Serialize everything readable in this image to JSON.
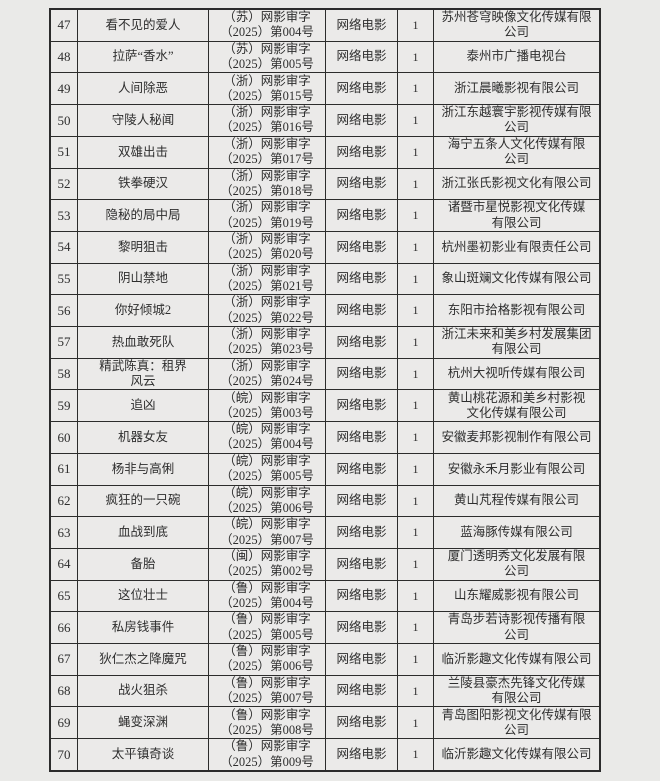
{
  "page": {
    "background": "#eaeae8",
    "table_border_color": "#2c2c2c",
    "cell_background": "#ebeae9"
  },
  "table": {
    "columns": [
      "index",
      "title",
      "license-number",
      "category",
      "episode-count",
      "production-company"
    ],
    "rows": [
      {
        "num": "47",
        "title": "看不见的爱人",
        "license": "（苏）网影审字\n（2025）第004号",
        "type": "网络电影",
        "count": "1",
        "company": "苏州苍穹映像文化传媒有限\n公司"
      },
      {
        "num": "48",
        "title": "拉萨“香水”",
        "license": "（苏）网影审字\n（2025）第005号",
        "type": "网络电影",
        "count": "1",
        "company": "泰州市广播电视台"
      },
      {
        "num": "49",
        "title": "人间除恶",
        "license": "（浙）网影审字\n（2025）第015号",
        "type": "网络电影",
        "count": "1",
        "company": "浙江晨曦影视有限公司"
      },
      {
        "num": "50",
        "title": "守陵人秘闻",
        "license": "（浙）网影审字\n（2025）第016号",
        "type": "网络电影",
        "count": "1",
        "company": "浙江东越寰宇影视传媒有限\n公司"
      },
      {
        "num": "51",
        "title": "双雄出击",
        "license": "（浙）网影审字\n（2025）第017号",
        "type": "网络电影",
        "count": "1",
        "company": "海宁五条人文化传媒有限\n公司"
      },
      {
        "num": "52",
        "title": "铁拳硬汉",
        "license": "（浙）网影审字\n（2025）第018号",
        "type": "网络电影",
        "count": "1",
        "company": "浙江张氏影视文化有限公司"
      },
      {
        "num": "53",
        "title": "隐秘的局中局",
        "license": "（浙）网影审字\n（2025）第019号",
        "type": "网络电影",
        "count": "1",
        "company": "诸暨市星悦影视文化传媒\n有限公司"
      },
      {
        "num": "54",
        "title": "黎明狙击",
        "license": "（浙）网影审字\n（2025）第020号",
        "type": "网络电影",
        "count": "1",
        "company": "杭州墨初影业有限责任公司"
      },
      {
        "num": "55",
        "title": "阴山禁地",
        "license": "（浙）网影审字\n（2025）第021号",
        "type": "网络电影",
        "count": "1",
        "company": "象山斑斓文化传媒有限公司"
      },
      {
        "num": "56",
        "title": "你好倾城2",
        "license": "（浙）网影审字\n（2025）第022号",
        "type": "网络电影",
        "count": "1",
        "company": "东阳市拾格影视有限公司"
      },
      {
        "num": "57",
        "title": "热血敢死队",
        "license": "（浙）网影审字\n（2025）第023号",
        "type": "网络电影",
        "count": "1",
        "company": "浙江未来和美乡村发展集团\n有限公司"
      },
      {
        "num": "58",
        "title": "精武陈真：租界\n风云",
        "license": "（浙）网影审字\n（2025）第024号",
        "type": "网络电影",
        "count": "1",
        "company": "杭州大视听传媒有限公司"
      },
      {
        "num": "59",
        "title": "追凶",
        "license": "（皖）网影审字\n（2025）第003号",
        "type": "网络电影",
        "count": "1",
        "company": "黄山桃花源和美乡村影视\n文化传媒有限公司"
      },
      {
        "num": "60",
        "title": "机器女友",
        "license": "（皖）网影审字\n（2025）第004号",
        "type": "网络电影",
        "count": "1",
        "company": "安徽麦邦影视制作有限公司"
      },
      {
        "num": "61",
        "title": "杨非与高俐",
        "license": "（皖）网影审字\n（2025）第005号",
        "type": "网络电影",
        "count": "1",
        "company": "安徽永禾月影业有限公司"
      },
      {
        "num": "62",
        "title": "疯狂的一只碗",
        "license": "（皖）网影审字\n（2025）第006号",
        "type": "网络电影",
        "count": "1",
        "company": "黄山芃程传媒有限公司"
      },
      {
        "num": "63",
        "title": "血战到底",
        "license": "（皖）网影审字\n（2025）第007号",
        "type": "网络电影",
        "count": "1",
        "company": "蓝海豚传媒有限公司"
      },
      {
        "num": "64",
        "title": "备胎",
        "license": "（闽）网影审字\n（2025）第002号",
        "type": "网络电影",
        "count": "1",
        "company": "厦门透明秀文化发展有限\n公司"
      },
      {
        "num": "65",
        "title": "这位壮士",
        "license": "（鲁）网影审字\n（2025）第004号",
        "type": "网络电影",
        "count": "1",
        "company": "山东耀威影视有限公司"
      },
      {
        "num": "66",
        "title": "私房钱事件",
        "license": "（鲁）网影审字\n（2025）第005号",
        "type": "网络电影",
        "count": "1",
        "company": "青岛步若诗影视传播有限\n公司"
      },
      {
        "num": "67",
        "title": "狄仁杰之降魔咒",
        "license": "（鲁）网影审字\n（2025）第006号",
        "type": "网络电影",
        "count": "1",
        "company": "临沂影趣文化传媒有限公司"
      },
      {
        "num": "68",
        "title": "战火狙杀",
        "license": "（鲁）网影审字\n（2025）第007号",
        "type": "网络电影",
        "count": "1",
        "company": "兰陵县豪杰先锋文化传媒\n有限公司"
      },
      {
        "num": "69",
        "title": "蝇变深渊",
        "license": "（鲁）网影审字\n（2025）第008号",
        "type": "网络电影",
        "count": "1",
        "company": "青岛图阳影视文化传媒有限\n公司"
      },
      {
        "num": "70",
        "title": "太平镇奇谈",
        "license": "（鲁）网影审字\n（2025）第009号",
        "type": "网络电影",
        "count": "1",
        "company": "临沂影趣文化传媒有限公司"
      }
    ]
  }
}
